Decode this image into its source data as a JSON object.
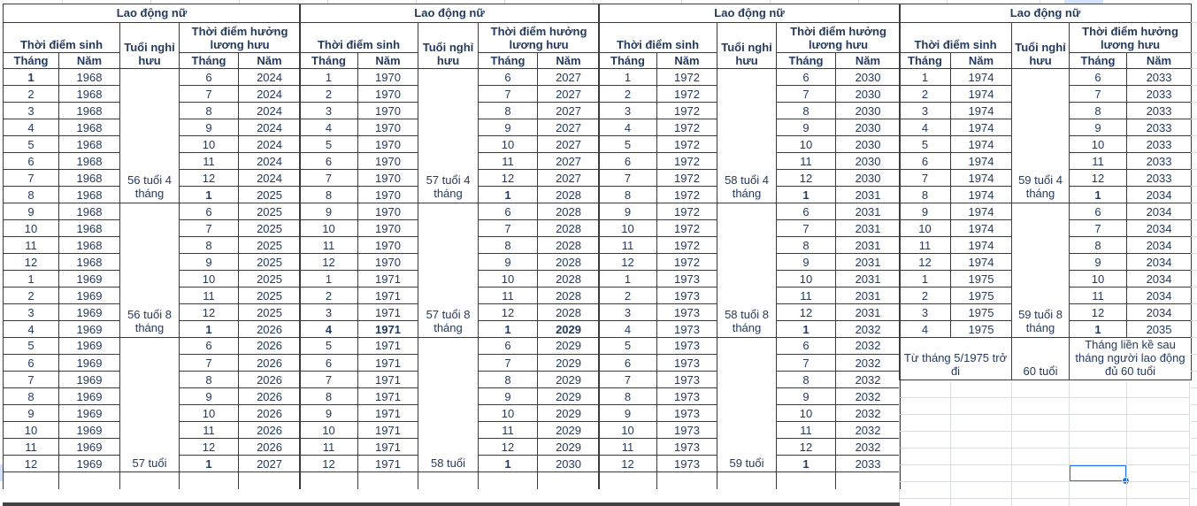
{
  "labels": {
    "group_title": "Lao động nữ",
    "birth_header": "Thời điểm sinh",
    "age_header": "Tuổi nghỉ hưu",
    "pension_header": "Thời điểm hưởng lương hưu",
    "month_label": "Tháng",
    "year_label": "Năm"
  },
  "colors": {
    "text": "#253a5e",
    "table_border": "#3c3c3c",
    "gridline": "#d9dce0",
    "selection_blue": "#1a73e8",
    "highlight_blue": "#d3e3fd",
    "bottom_band": "#424242"
  },
  "groups": [
    {
      "ages": [
        "56 tuổi 4 tháng",
        "56 tuổi 8 tháng",
        "57 tuổi"
      ],
      "bold": [
        [
          0,
          0
        ],
        [
          7,
          2
        ],
        [
          15,
          2
        ],
        [
          23,
          2
        ]
      ],
      "rows": [
        [
          "1",
          "1968",
          "6",
          "2024"
        ],
        [
          "2",
          "1968",
          "7",
          "2024"
        ],
        [
          "3",
          "1968",
          "8",
          "2024"
        ],
        [
          "4",
          "1968",
          "9",
          "2024"
        ],
        [
          "5",
          "1968",
          "10",
          "2024"
        ],
        [
          "6",
          "1968",
          "11",
          "2024"
        ],
        [
          "7",
          "1968",
          "12",
          "2024"
        ],
        [
          "8",
          "1968",
          "1",
          "2025"
        ],
        [
          "9",
          "1968",
          "6",
          "2025"
        ],
        [
          "10",
          "1968",
          "7",
          "2025"
        ],
        [
          "11",
          "1968",
          "8",
          "2025"
        ],
        [
          "12",
          "1968",
          "9",
          "2025"
        ],
        [
          "1",
          "1969",
          "10",
          "2025"
        ],
        [
          "2",
          "1969",
          "11",
          "2025"
        ],
        [
          "3",
          "1969",
          "12",
          "2025"
        ],
        [
          "4",
          "1969",
          "1",
          "2026"
        ],
        [
          "5",
          "1969",
          "6",
          "2026"
        ],
        [
          "6",
          "1969",
          "7",
          "2026"
        ],
        [
          "7",
          "1969",
          "8",
          "2026"
        ],
        [
          "8",
          "1969",
          "9",
          "2026"
        ],
        [
          "9",
          "1969",
          "10",
          "2026"
        ],
        [
          "10",
          "1969",
          "11",
          "2026"
        ],
        [
          "11",
          "1969",
          "12",
          "2026"
        ],
        [
          "12",
          "1969",
          "1",
          "2027"
        ]
      ]
    },
    {
      "ages": [
        "57 tuổi 4 tháng",
        "57 tuổi 8 tháng",
        "58 tuổi"
      ],
      "bold": [
        [
          7,
          2
        ],
        [
          15,
          0
        ],
        [
          15,
          1
        ],
        [
          15,
          2
        ],
        [
          15,
          3
        ],
        [
          23,
          2
        ]
      ],
      "rows": [
        [
          "1",
          "1970",
          "6",
          "2027"
        ],
        [
          "2",
          "1970",
          "7",
          "2027"
        ],
        [
          "3",
          "1970",
          "8",
          "2027"
        ],
        [
          "4",
          "1970",
          "9",
          "2027"
        ],
        [
          "5",
          "1970",
          "10",
          "2027"
        ],
        [
          "6",
          "1970",
          "11",
          "2027"
        ],
        [
          "7",
          "1970",
          "12",
          "2027"
        ],
        [
          "8",
          "1970",
          "1",
          "2028"
        ],
        [
          "9",
          "1970",
          "6",
          "2028"
        ],
        [
          "10",
          "1970",
          "7",
          "2028"
        ],
        [
          "11",
          "1970",
          "8",
          "2028"
        ],
        [
          "12",
          "1970",
          "9",
          "2028"
        ],
        [
          "1",
          "1971",
          "10",
          "2028"
        ],
        [
          "2",
          "1971",
          "11",
          "2028"
        ],
        [
          "3",
          "1971",
          "12",
          "2028"
        ],
        [
          "4",
          "1971",
          "1",
          "2029"
        ],
        [
          "5",
          "1971",
          "6",
          "2029"
        ],
        [
          "6",
          "1971",
          "7",
          "2029"
        ],
        [
          "7",
          "1971",
          "8",
          "2029"
        ],
        [
          "8",
          "1971",
          "9",
          "2029"
        ],
        [
          "9",
          "1971",
          "10",
          "2029"
        ],
        [
          "10",
          "1971",
          "11",
          "2029"
        ],
        [
          "11",
          "1971",
          "12",
          "2029"
        ],
        [
          "12",
          "1971",
          "1",
          "2030"
        ]
      ]
    },
    {
      "ages": [
        "58 tuổi 4 tháng",
        "58 tuổi 8 tháng",
        "59 tuổi"
      ],
      "bold": [
        [
          7,
          2
        ],
        [
          15,
          2
        ],
        [
          23,
          2
        ]
      ],
      "rows": [
        [
          "1",
          "1972",
          "6",
          "2030"
        ],
        [
          "2",
          "1972",
          "7",
          "2030"
        ],
        [
          "3",
          "1972",
          "8",
          "2030"
        ],
        [
          "4",
          "1972",
          "9",
          "2030"
        ],
        [
          "5",
          "1972",
          "10",
          "2030"
        ],
        [
          "6",
          "1972",
          "11",
          "2030"
        ],
        [
          "7",
          "1972",
          "12",
          "2030"
        ],
        [
          "8",
          "1972",
          "1",
          "2031"
        ],
        [
          "9",
          "1972",
          "6",
          "2031"
        ],
        [
          "10",
          "1972",
          "7",
          "2031"
        ],
        [
          "11",
          "1972",
          "8",
          "2031"
        ],
        [
          "12",
          "1972",
          "9",
          "2031"
        ],
        [
          "1",
          "1973",
          "10",
          "2031"
        ],
        [
          "2",
          "1973",
          "11",
          "2031"
        ],
        [
          "3",
          "1973",
          "12",
          "2031"
        ],
        [
          "4",
          "1973",
          "1",
          "2032"
        ],
        [
          "5",
          "1973",
          "6",
          "2032"
        ],
        [
          "6",
          "1973",
          "7",
          "2032"
        ],
        [
          "7",
          "1973",
          "8",
          "2032"
        ],
        [
          "8",
          "1973",
          "9",
          "2032"
        ],
        [
          "9",
          "1973",
          "10",
          "2032"
        ],
        [
          "10",
          "1973",
          "11",
          "2032"
        ],
        [
          "11",
          "1973",
          "12",
          "2032"
        ],
        [
          "12",
          "1973",
          "1",
          "2033"
        ]
      ]
    },
    {
      "ages": [
        "59 tuổi 4 tháng",
        "59 tuổi 8 tháng"
      ],
      "bold": [
        [
          7,
          2
        ],
        [
          15,
          2
        ]
      ],
      "rows": [
        [
          "1",
          "1974",
          "6",
          "2033"
        ],
        [
          "2",
          "1974",
          "7",
          "2033"
        ],
        [
          "3",
          "1974",
          "8",
          "2033"
        ],
        [
          "4",
          "1974",
          "9",
          "2033"
        ],
        [
          "5",
          "1974",
          "10",
          "2033"
        ],
        [
          "6",
          "1974",
          "11",
          "2033"
        ],
        [
          "7",
          "1974",
          "12",
          "2033"
        ],
        [
          "8",
          "1974",
          "1",
          "2034"
        ],
        [
          "9",
          "1974",
          "6",
          "2034"
        ],
        [
          "10",
          "1974",
          "7",
          "2034"
        ],
        [
          "11",
          "1974",
          "8",
          "2034"
        ],
        [
          "12",
          "1974",
          "9",
          "2034"
        ],
        [
          "1",
          "1975",
          "10",
          "2034"
        ],
        [
          "2",
          "1975",
          "11",
          "2034"
        ],
        [
          "3",
          "1975",
          "12",
          "2034"
        ],
        [
          "4",
          "1975",
          "1",
          "2035"
        ]
      ],
      "special_row": {
        "birth": "Từ tháng 5/1975 trở đi",
        "age": "60 tuổi",
        "pension": "Tháng liền kề sau tháng người lao động đủ 60 tuổi"
      }
    }
  ]
}
